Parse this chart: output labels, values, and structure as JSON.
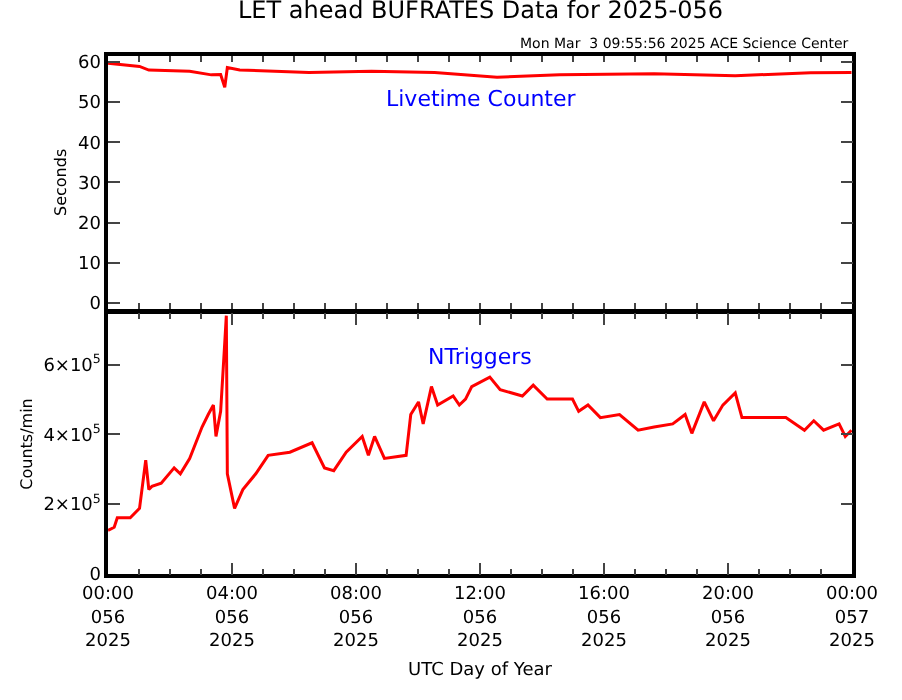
{
  "chart_data": [
    {
      "type": "line",
      "title": "LET ahead BUFRATES Data for 2025-056",
      "subtitle": "Mon Mar  3 09:55:56 2025 ACE Science Center",
      "ylabel": "Seconds",
      "tick_labels": "y",
      "marker": "none",
      "line_style": "solid",
      "xlim": [
        "2025-02-25T00:00",
        "2025-02-26T00:00"
      ],
      "xticks": [
        {
          "value": "2025-02-25T00:00",
          "label": null
        },
        {
          "value": "2025-02-25T04:00",
          "label": null
        },
        {
          "value": "2025-02-25T08:00",
          "label": null
        },
        {
          "value": "2025-02-25T12:00",
          "label": null
        },
        {
          "value": "2025-02-25T16:00",
          "label": null
        },
        {
          "value": "2025-02-25T20:00",
          "label": null
        },
        {
          "value": "2025-02-26T00:00",
          "label": null
        }
      ],
      "ylim": [
        -1.5,
        61.5
      ],
      "yticks": [
        0,
        10,
        20,
        30,
        40,
        50,
        60
      ],
      "series": [
        {
          "name": "Livetime Counter",
          "color": "#ff0000",
          "x": [
            "2025-02-25T00:00",
            "2025-02-25T01:01",
            "2025-02-25T01:19",
            "2025-02-25T02:38",
            "2025-02-25T03:20",
            "2025-02-25T03:38",
            "2025-02-25T03:46",
            "2025-02-25T03:51",
            "2025-02-25T04:15",
            "2025-02-25T06:29",
            "2025-02-25T08:30",
            "2025-02-25T10:32",
            "2025-02-25T12:33",
            "2025-02-25T14:34",
            "2025-02-25T17:37",
            "2025-02-25T20:14",
            "2025-02-25T22:40",
            "2025-02-25T23:59"
          ],
          "values": [
            59.7,
            58.9,
            58.0,
            57.7,
            56.8,
            56.9,
            53.7,
            58.6,
            58.0,
            57.4,
            57.7,
            57.4,
            56.2,
            56.8,
            57.1,
            56.6,
            57.3,
            57.4
          ]
        }
      ]
    },
    {
      "type": "line",
      "xlabel": "UTC Day of Year",
      "ylabel": "Counts/min",
      "marker": "none",
      "line_style": "solid",
      "xlim": [
        "2025-02-25T00:00",
        "2025-02-26T00:00"
      ],
      "xticks": [
        {
          "value": "2025-02-25T00:00",
          "label": "00:00\n056\n2025"
        },
        {
          "value": "2025-02-25T04:00",
          "label": "04:00\n056\n2025"
        },
        {
          "value": "2025-02-25T08:00",
          "label": "08:00\n056\n2025"
        },
        {
          "value": "2025-02-25T12:00",
          "label": "12:00\n056\n2025"
        },
        {
          "value": "2025-02-25T16:00",
          "label": "16:00\n056\n2025"
        },
        {
          "value": "2025-02-25T20:00",
          "label": "20:00\n056\n2025"
        },
        {
          "value": "2025-02-26T00:00",
          "label": "00:00\n057\n2025"
        }
      ],
      "ylim": [
        0,
        745000
      ],
      "yticks": [
        0,
        {
          "value": 200000,
          "label": "2×10$^{5}$"
        },
        {
          "value": 400000,
          "label": "4×10$^{5}$"
        },
        {
          "value": 600000,
          "label": "6×10$^{5}$"
        }
      ],
      "series": [
        {
          "name": "NTriggers",
          "color": "#ff0000",
          "x": [
            "2025-02-25T00:00",
            "2025-02-25T00:12",
            "2025-02-25T00:18",
            "2025-02-25T00:43",
            "2025-02-25T01:01",
            "2025-02-25T01:13",
            "2025-02-25T01:19",
            "2025-02-25T01:25",
            "2025-02-25T01:43",
            "2025-02-25T02:08",
            "2025-02-25T02:20",
            "2025-02-25T02:38",
            "2025-02-25T03:02",
            "2025-02-25T03:14",
            "2025-02-25T03:24",
            "2025-02-25T03:29",
            "2025-02-25T03:38",
            "2025-02-25T03:46",
            "2025-02-25T03:49",
            "2025-02-25T03:51",
            "2025-02-25T04:05",
            "2025-02-25T04:21",
            "2025-02-25T04:46",
            "2025-02-25T05:10",
            "2025-02-25T05:52",
            "2025-02-25T06:35",
            "2025-02-25T06:59",
            "2025-02-25T07:17",
            "2025-02-25T07:41",
            "2025-02-25T08:12",
            "2025-02-25T08:24",
            "2025-02-25T08:36",
            "2025-02-25T08:55",
            "2025-02-25T09:37",
            "2025-02-25T09:46",
            "2025-02-25T10:01",
            "2025-02-25T10:10",
            "2025-02-25T10:26",
            "2025-02-25T10:38",
            "2025-02-25T11:08",
            "2025-02-25T11:20",
            "2025-02-25T11:32",
            "2025-02-25T11:44",
            "2025-02-25T12:19",
            "2025-02-25T12:39",
            "2025-02-25T13:22",
            "2025-02-25T13:43",
            "2025-02-25T14:10",
            "2025-02-25T14:59",
            "2025-02-25T15:11",
            "2025-02-25T15:29",
            "2025-02-25T15:53",
            "2025-02-25T16:30",
            "2025-02-25T17:06",
            "2025-02-25T17:37",
            "2025-02-25T18:13",
            "2025-02-25T18:37",
            "2025-02-25T18:50",
            "2025-02-25T19:14",
            "2025-02-25T19:32",
            "2025-02-25T19:50",
            "2025-02-25T20:14",
            "2025-02-25T20:27",
            "2025-02-25T21:16",
            "2025-02-25T21:52",
            "2025-02-25T22:28",
            "2025-02-25T22:46",
            "2025-02-25T23:05",
            "2025-02-25T23:35",
            "2025-02-25T23:47",
            "2025-02-25T23:59"
          ],
          "values": [
            125000,
            134000,
            161000,
            161000,
            188000,
            326000,
            242000,
            251000,
            260000,
            304000,
            287000,
            331000,
            421000,
            457000,
            484000,
            394000,
            466000,
            663000,
            740000,
            287000,
            188000,
            242000,
            287000,
            340000,
            349000,
            376000,
            304000,
            296000,
            349000,
            394000,
            340000,
            394000,
            331000,
            340000,
            457000,
            493000,
            430000,
            537000,
            484000,
            510000,
            484000,
            501000,
            537000,
            564000,
            528000,
            510000,
            541000,
            501000,
            501000,
            466000,
            484000,
            448000,
            457000,
            412000,
            421000,
            430000,
            457000,
            403000,
            493000,
            439000,
            484000,
            519000,
            448000,
            448000,
            448000,
            412000,
            439000,
            412000,
            430000,
            394000,
            412000
          ]
        }
      ]
    }
  ]
}
